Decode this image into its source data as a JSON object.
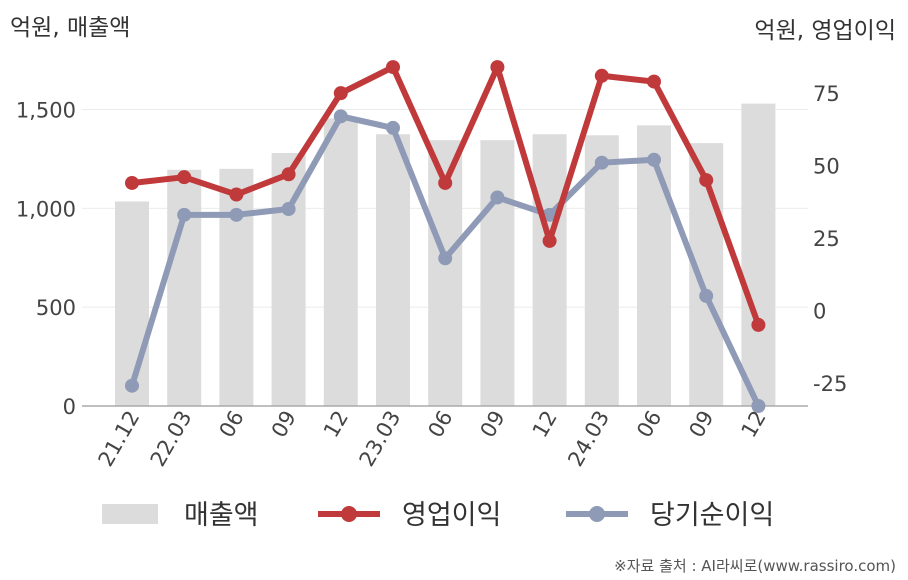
{
  "chart_data": {
    "type": "bar+line",
    "left_unit": "억원, 매출액",
    "right_unit": "억원, 영업이익",
    "categories": [
      "21.12",
      "22.03",
      "06",
      "09",
      "12",
      "23.03",
      "06",
      "09",
      "12",
      "24.03",
      "06",
      "09",
      "12"
    ],
    "y_left": {
      "min": 0,
      "max": 1700,
      "ticks": [
        0,
        500,
        1000,
        1500
      ],
      "tick_labels": [
        "0",
        "500",
        "1,000",
        "1,500"
      ]
    },
    "y_right": {
      "min": -33,
      "max": 83,
      "ticks": [
        -25,
        0,
        25,
        50,
        75
      ],
      "tick_labels": [
        "-25",
        "0",
        "25",
        "50",
        "75"
      ]
    },
    "grid": true,
    "legend_position": "bottom",
    "series": [
      {
        "name": "매출액",
        "kind": "bar",
        "axis": "left",
        "color": "#dcdcdc",
        "values": [
          1035,
          1195,
          1200,
          1280,
          1455,
          1375,
          1345,
          1345,
          1375,
          1370,
          1420,
          1330,
          1530
        ]
      },
      {
        "name": "영업이익",
        "kind": "line",
        "axis": "right",
        "color": "#c0393b",
        "values": [
          44,
          46,
          40,
          47,
          75,
          84,
          44,
          84,
          24,
          81,
          79,
          45,
          -5
        ]
      },
      {
        "name": "당기순이익",
        "kind": "line",
        "axis": "right",
        "color": "#8e9ab6",
        "values": [
          -26,
          33,
          33,
          35,
          67,
          63,
          18,
          39,
          33,
          51,
          52,
          5,
          -33
        ]
      }
    ]
  },
  "footer": {
    "source": "※자료 출처 : AI라씨로(www.rassiro.com)"
  }
}
